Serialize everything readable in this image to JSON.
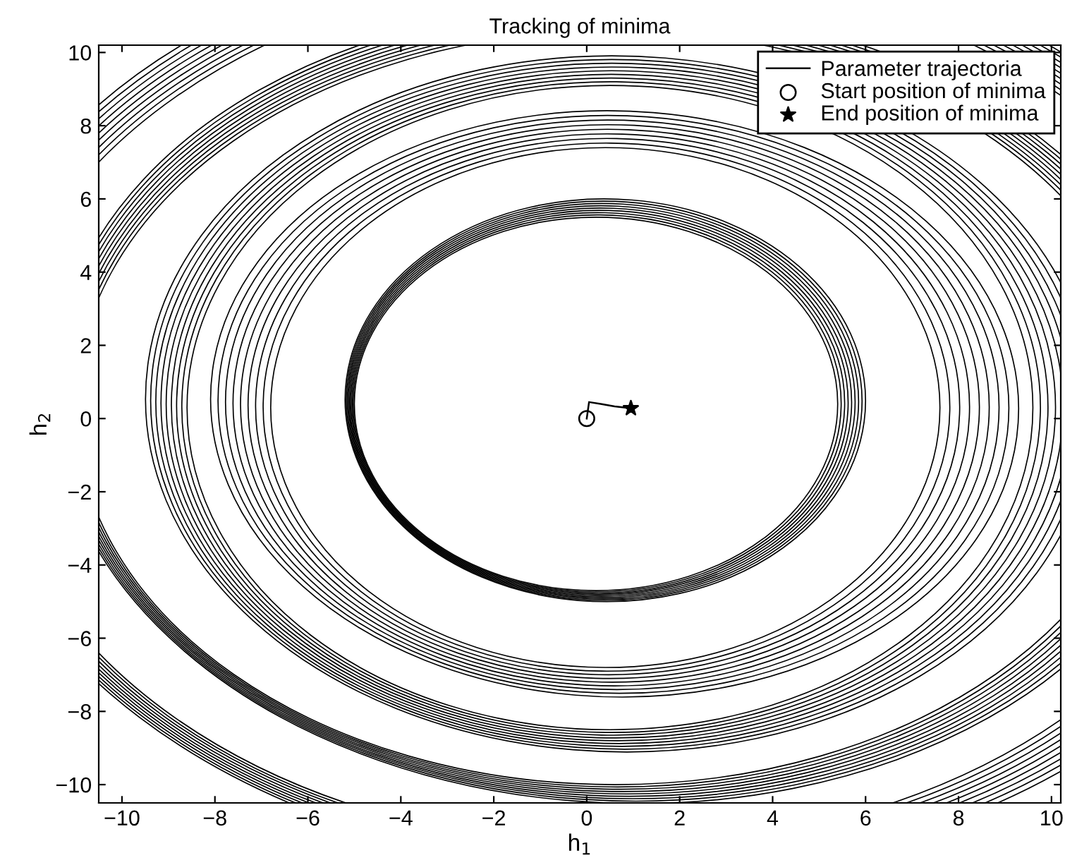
{
  "chart_data": {
    "type": "line",
    "title": "Tracking of minima",
    "xlabel": "h$_{1}$",
    "ylabel": "h$_{2}$",
    "xlim": [
      -10.5,
      10.2
    ],
    "ylim": [
      -10.5,
      10.2
    ],
    "xticks": [
      -10,
      -8,
      -6,
      -4,
      -2,
      0,
      2,
      4,
      6,
      8,
      10
    ],
    "yticks": [
      -10,
      -8,
      -6,
      -4,
      -2,
      0,
      2,
      4,
      6,
      8,
      10
    ],
    "grid": false,
    "legend": "top right",
    "series": [
      {
        "name": "Parameter trajectoria",
        "color": "#000000",
        "x": [
          0,
          0.05,
          0.3,
          0.6,
          0.95
        ],
        "values": [
          0,
          0.45,
          0.4,
          0.33,
          0.28
        ]
      },
      {
        "type": "scatter",
        "name": "Start position of minima",
        "color": "#000000",
        "marker": "circle",
        "x": [
          0
        ],
        "values": [
          0
        ]
      },
      {
        "type": "scatter",
        "name": "End position of minima",
        "color": "#000000",
        "marker": "star",
        "x": [
          0.95
        ],
        "values": [
          0.28
        ]
      }
    ]
  }
}
